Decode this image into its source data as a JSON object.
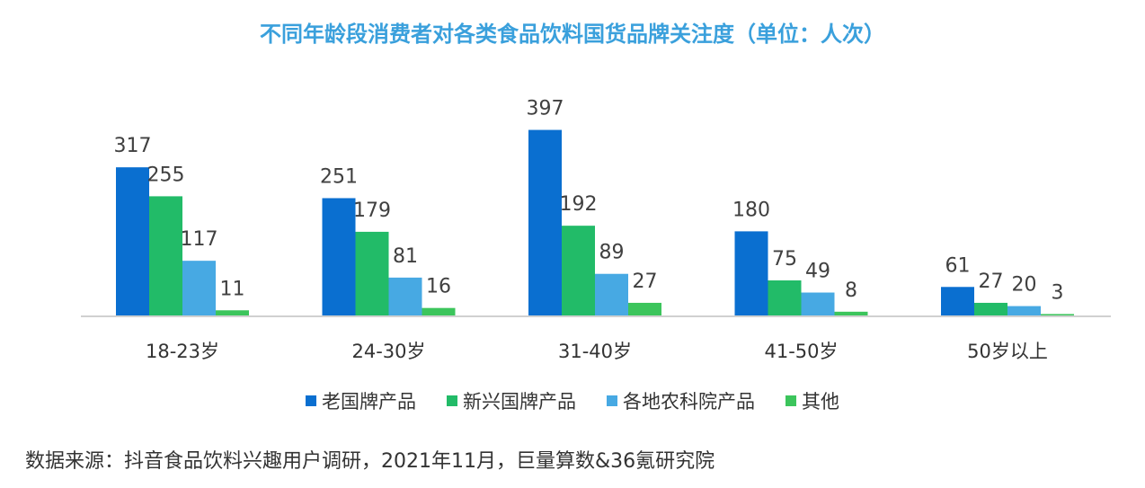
{
  "chart_data": {
    "type": "bar",
    "title": "不同年龄段消费者对各类食品饮料国货品牌关注度（单位：人次）",
    "categories": [
      "18-23岁",
      "24-30岁",
      "31-40岁",
      "41-50岁",
      "50岁以上"
    ],
    "series": [
      {
        "name": "老国牌产品",
        "color": "#0a6fd0",
        "values": [
          317,
          251,
          397,
          180,
          61
        ]
      },
      {
        "name": "新兴国牌产品",
        "color": "#22bb68",
        "values": [
          255,
          179,
          192,
          75,
          27
        ]
      },
      {
        "name": "各地农科院产品",
        "color": "#47a9e3",
        "values": [
          117,
          81,
          89,
          49,
          20
        ]
      },
      {
        "name": "其他",
        "color": "#3cc55c",
        "values": [
          11,
          16,
          27,
          8,
          3
        ]
      }
    ],
    "ylim": [
      0,
      400
    ],
    "legend_position": "bottom",
    "grid": false,
    "data_labels": true
  },
  "footer": {
    "source": "数据来源：抖音食品饮料兴趣用户调研，2021年11月，巨量算数&36氪研究院"
  }
}
